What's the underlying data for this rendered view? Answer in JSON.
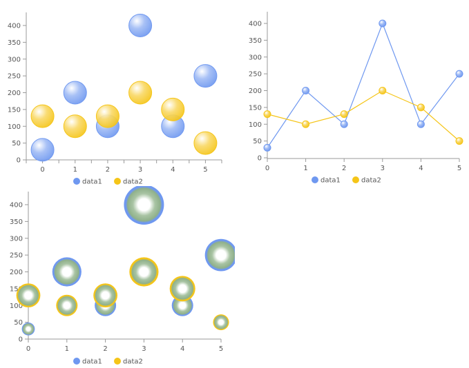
{
  "chart_data": [
    {
      "type": "scatter",
      "variant": "bubble",
      "x": [
        0,
        1,
        2,
        3,
        4,
        5
      ],
      "ylim": [
        0,
        400
      ],
      "yticks": [
        0,
        50,
        100,
        150,
        200,
        250,
        300,
        350,
        400
      ],
      "grid": false,
      "legend": "bottom",
      "series": [
        {
          "name": "data1",
          "values": [
            30,
            200,
            100,
            400,
            100,
            250
          ],
          "color": "#6f98f0"
        },
        {
          "name": "data2",
          "values": [
            130,
            100,
            130,
            200,
            150,
            50
          ],
          "color": "#f5c518"
        }
      ]
    },
    {
      "type": "line",
      "x": [
        0,
        1,
        2,
        3,
        4,
        5
      ],
      "ylim": [
        0,
        400
      ],
      "yticks": [
        0,
        50,
        100,
        150,
        200,
        250,
        300,
        350,
        400
      ],
      "grid": false,
      "legend": "bottom",
      "series": [
        {
          "name": "data1",
          "values": [
            30,
            200,
            100,
            400,
            100,
            250
          ],
          "color": "#6f98f0"
        },
        {
          "name": "data2",
          "values": [
            130,
            100,
            130,
            200,
            150,
            50
          ],
          "color": "#f5c518"
        }
      ]
    },
    {
      "type": "scatter",
      "variant": "bubble-size",
      "x": [
        0,
        1,
        2,
        3,
        4,
        5
      ],
      "ylim": [
        0,
        400
      ],
      "yticks": [
        0,
        50,
        100,
        150,
        200,
        250,
        300,
        350,
        400
      ],
      "grid": false,
      "legend": "bottom",
      "series": [
        {
          "name": "data1",
          "values": [
            30,
            200,
            100,
            400,
            100,
            250
          ],
          "color": "#6f98f0"
        },
        {
          "name": "data2",
          "values": [
            130,
            100,
            130,
            200,
            150,
            50
          ],
          "color": "#f5c518"
        }
      ]
    }
  ]
}
